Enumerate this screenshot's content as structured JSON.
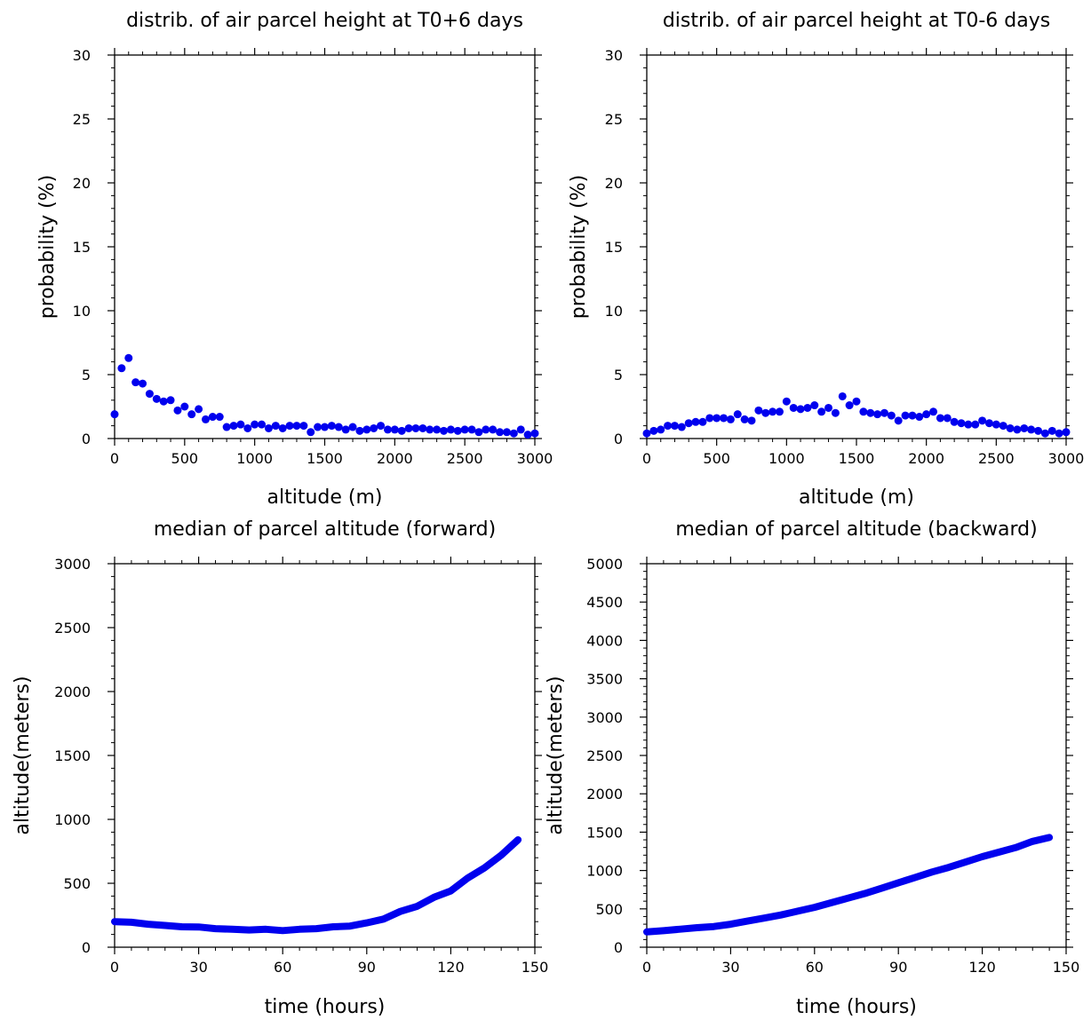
{
  "colors": {
    "marker": "#0000ee",
    "axis": "#000000",
    "background": "#ffffff"
  },
  "chart_data": [
    {
      "type": "scatter",
      "title": "distrib. of air parcel height at T0+6 days",
      "xlabel": "altitude (m)",
      "ylabel": "probability (%)",
      "xlim": [
        0,
        3000
      ],
      "ylim": [
        0,
        30
      ],
      "xticks": [
        0,
        500,
        1000,
        1500,
        2000,
        2500,
        3000
      ],
      "yticks": [
        0,
        5,
        10,
        15,
        20,
        25,
        30
      ],
      "grid": false,
      "series": [
        {
          "x": [
            0,
            50,
            100,
            150,
            200,
            250,
            300,
            350,
            400,
            450,
            500,
            550,
            600,
            650,
            700,
            750,
            800,
            850,
            900,
            950,
            1000,
            1050,
            1100,
            1150,
            1200,
            1250,
            1300,
            1350,
            1400,
            1450,
            1500,
            1550,
            1600,
            1650,
            1700,
            1750,
            1800,
            1850,
            1900,
            1950,
            2000,
            2050,
            2100,
            2150,
            2200,
            2250,
            2300,
            2350,
            2400,
            2450,
            2500,
            2550,
            2600,
            2650,
            2700,
            2750,
            2800,
            2850,
            2900,
            2950,
            3000
          ],
          "y": [
            1.9,
            5.5,
            6.3,
            4.4,
            4.3,
            3.5,
            3.1,
            2.9,
            3.0,
            2.2,
            2.5,
            1.9,
            2.3,
            1.5,
            1.7,
            1.7,
            0.9,
            1.0,
            1.1,
            0.8,
            1.1,
            1.1,
            0.8,
            1.0,
            0.8,
            1.0,
            1.0,
            1.0,
            0.5,
            0.9,
            0.9,
            1.0,
            0.9,
            0.7,
            0.9,
            0.6,
            0.7,
            0.8,
            1.0,
            0.7,
            0.7,
            0.6,
            0.8,
            0.8,
            0.8,
            0.7,
            0.7,
            0.6,
            0.7,
            0.6,
            0.7,
            0.7,
            0.5,
            0.7,
            0.7,
            0.5,
            0.5,
            0.4,
            0.7,
            0.3,
            0.4
          ]
        }
      ]
    },
    {
      "type": "scatter",
      "title": "distrib. of air parcel height at T0-6 days",
      "xlabel": "altitude (m)",
      "ylabel": "probability (%)",
      "xlim": [
        0,
        3000
      ],
      "ylim": [
        0,
        30
      ],
      "xticks": [
        0,
        500,
        1000,
        1500,
        2000,
        2500,
        3000
      ],
      "yticks": [
        0,
        5,
        10,
        15,
        20,
        25,
        30
      ],
      "grid": false,
      "series": [
        {
          "x": [
            0,
            50,
            100,
            150,
            200,
            250,
            300,
            350,
            400,
            450,
            500,
            550,
            600,
            650,
            700,
            750,
            800,
            850,
            900,
            950,
            1000,
            1050,
            1100,
            1150,
            1200,
            1250,
            1300,
            1350,
            1400,
            1450,
            1500,
            1550,
            1600,
            1650,
            1700,
            1750,
            1800,
            1850,
            1900,
            1950,
            2000,
            2050,
            2100,
            2150,
            2200,
            2250,
            2300,
            2350,
            2400,
            2450,
            2500,
            2550,
            2600,
            2650,
            2700,
            2750,
            2800,
            2850,
            2900,
            2950,
            3000
          ],
          "y": [
            0.4,
            0.6,
            0.7,
            1.0,
            1.0,
            0.9,
            1.2,
            1.3,
            1.3,
            1.6,
            1.6,
            1.6,
            1.5,
            1.9,
            1.5,
            1.4,
            2.2,
            2.0,
            2.1,
            2.1,
            2.9,
            2.4,
            2.3,
            2.4,
            2.6,
            2.1,
            2.4,
            2.0,
            3.3,
            2.6,
            2.9,
            2.1,
            2.0,
            1.9,
            2.0,
            1.8,
            1.4,
            1.8,
            1.8,
            1.7,
            1.9,
            2.1,
            1.6,
            1.6,
            1.3,
            1.2,
            1.1,
            1.1,
            1.4,
            1.2,
            1.1,
            1.0,
            0.8,
            0.7,
            0.8,
            0.7,
            0.6,
            0.4,
            0.6,
            0.4,
            0.5
          ]
        }
      ]
    },
    {
      "type": "line",
      "title": "median of parcel altitude (forward)",
      "xlabel": "time (hours)",
      "ylabel": "altitude(meters)",
      "xlim": [
        0,
        150
      ],
      "ylim": [
        0,
        3000
      ],
      "xticks": [
        0,
        30,
        60,
        90,
        120,
        150
      ],
      "yticks": [
        0,
        500,
        1000,
        1500,
        2000,
        2500,
        3000
      ],
      "grid": false,
      "series": [
        {
          "x": [
            0,
            6,
            12,
            18,
            24,
            30,
            36,
            42,
            48,
            54,
            60,
            66,
            72,
            78,
            84,
            90,
            96,
            102,
            108,
            114,
            120,
            126,
            132,
            138,
            144
          ],
          "y": [
            200,
            195,
            180,
            170,
            160,
            158,
            145,
            140,
            135,
            140,
            130,
            140,
            145,
            160,
            165,
            190,
            220,
            280,
            320,
            390,
            440,
            540,
            620,
            720,
            840
          ]
        }
      ]
    },
    {
      "type": "line",
      "title": "median of parcel altitude (backward)",
      "xlabel": "time (hours)",
      "ylabel": "altitude(meters)",
      "xlim": [
        0,
        150
      ],
      "ylim": [
        0,
        5000
      ],
      "xticks": [
        0,
        30,
        60,
        90,
        120,
        150
      ],
      "yticks": [
        0,
        500,
        1000,
        1500,
        2000,
        2500,
        3000,
        3500,
        4000,
        4500,
        5000
      ],
      "grid": false,
      "series": [
        {
          "x": [
            0,
            6,
            12,
            18,
            24,
            30,
            36,
            42,
            48,
            54,
            60,
            66,
            72,
            78,
            84,
            90,
            96,
            102,
            108,
            114,
            120,
            126,
            132,
            138,
            144
          ],
          "y": [
            200,
            215,
            235,
            255,
            270,
            300,
            340,
            380,
            420,
            470,
            520,
            580,
            640,
            700,
            770,
            840,
            910,
            980,
            1040,
            1110,
            1180,
            1240,
            1300,
            1380,
            1430
          ]
        }
      ]
    }
  ]
}
